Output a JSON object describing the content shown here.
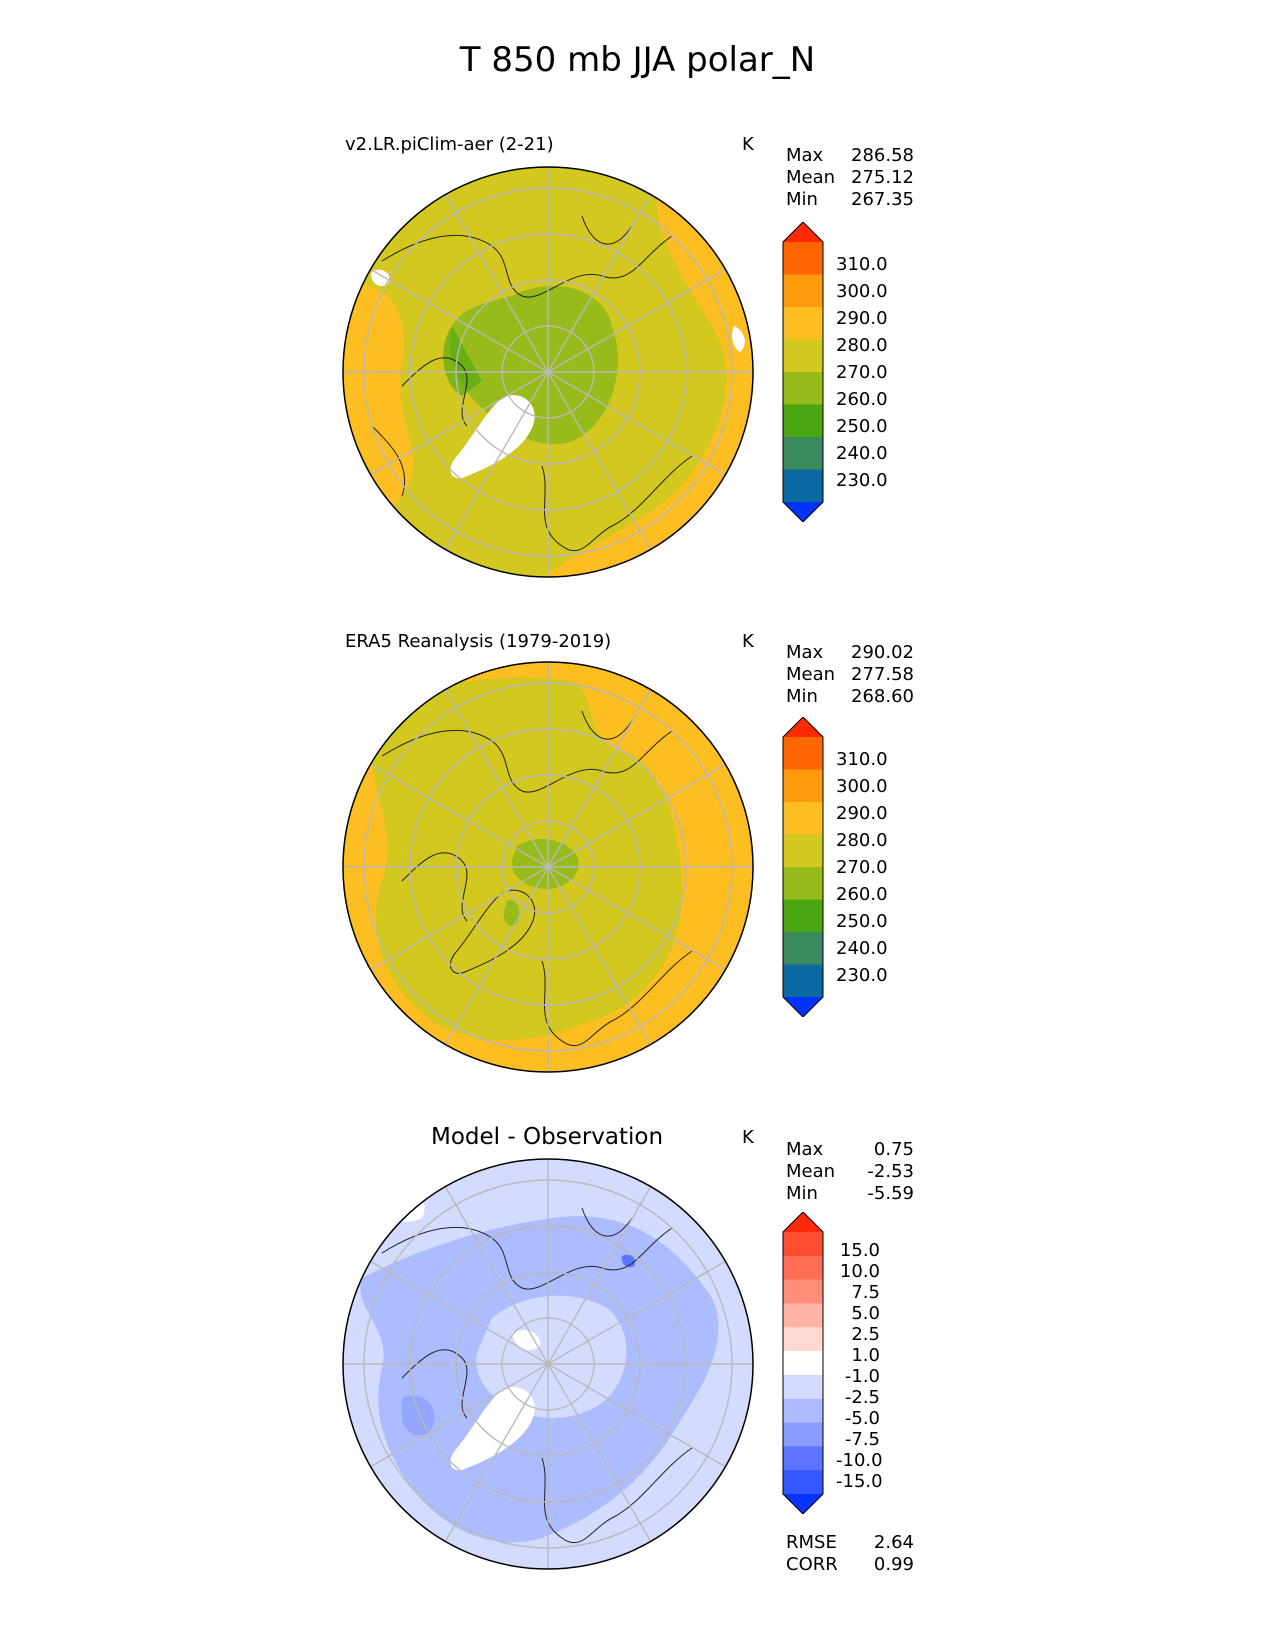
{
  "title": "T 850 mb JJA polar_N",
  "panels": [
    {
      "title": "v2.LR.piClim-aer (2-21)",
      "units": "K",
      "stats": [
        {
          "label": "Max",
          "value": "286.58"
        },
        {
          "label": "Mean",
          "value": "275.12"
        },
        {
          "label": "Min",
          "value": "267.35"
        }
      ],
      "colorbar": {
        "labels": [
          "310.0",
          "300.0",
          "290.0",
          "280.0",
          "270.0",
          "260.0",
          "250.0",
          "240.0",
          "230.0"
        ],
        "colors": [
          "#ff2a00",
          "#ff6600",
          "#ff9a0f",
          "#fdbe21",
          "#d2c820",
          "#97bb1a",
          "#4aa712",
          "#3a8a5e",
          "#0a6aa1",
          "#0033ff"
        ]
      }
    },
    {
      "title": "ERA5 Reanalysis (1979-2019)",
      "units": "K",
      "stats": [
        {
          "label": "Max",
          "value": "290.02"
        },
        {
          "label": "Mean",
          "value": "277.58"
        },
        {
          "label": "Min",
          "value": "268.60"
        }
      ],
      "colorbar": {
        "labels": [
          "310.0",
          "300.0",
          "290.0",
          "280.0",
          "270.0",
          "260.0",
          "250.0",
          "240.0",
          "230.0"
        ],
        "colors": [
          "#ff2a00",
          "#ff6600",
          "#ff9a0f",
          "#fdbe21",
          "#d2c820",
          "#97bb1a",
          "#4aa712",
          "#3a8a5e",
          "#0a6aa1",
          "#0033ff"
        ]
      }
    },
    {
      "title": "Model - Observation",
      "units": "K",
      "stats": [
        {
          "label": "Max",
          "value": "0.75"
        },
        {
          "label": "Mean",
          "value": "-2.53"
        },
        {
          "label": "Min",
          "value": "-5.59"
        }
      ],
      "colorbar": {
        "labels": [
          "15.0",
          "10.0",
          "7.5",
          "5.0",
          "2.5",
          "1.0",
          "-1.0",
          "-2.5",
          "-5.0",
          "-7.5",
          "-10.0",
          "-15.0"
        ],
        "colors": [
          "#ff2a0a",
          "#ff4d33",
          "#ff6d55",
          "#ff8d78",
          "#ffb3a5",
          "#ffd9d2",
          "#ffffff",
          "#d3dcff",
          "#adbcff",
          "#8a9cff",
          "#5c74ff",
          "#3358ff",
          "#0a33ff"
        ]
      },
      "footer": [
        {
          "label": "RMSE",
          "value": "2.64"
        },
        {
          "label": "CORR",
          "value": "0.99"
        }
      ]
    }
  ]
}
